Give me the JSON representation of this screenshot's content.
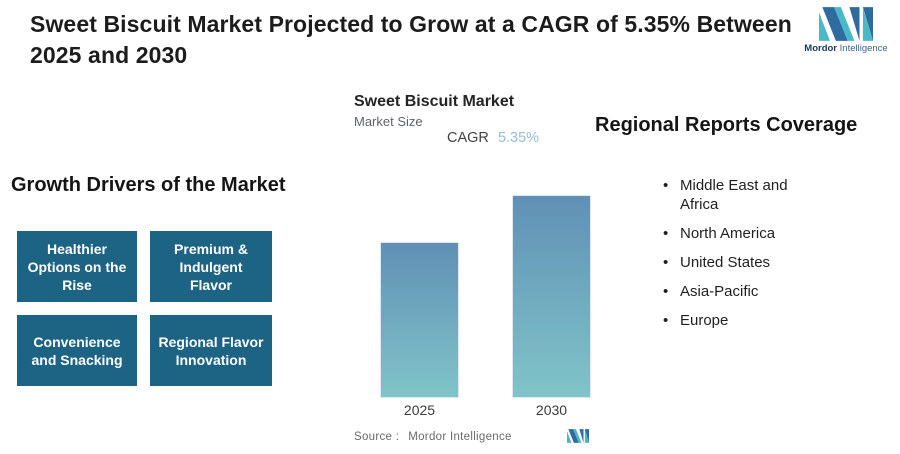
{
  "header": {
    "title": "Sweet Biscuit Market Projected to Grow at a CAGR of 5.35% Between 2025 and 2030"
  },
  "brand": {
    "icon": "mordor-intelligence-m-logo",
    "name_primary": "Mordor",
    "name_secondary": "Intelligence"
  },
  "growth_drivers": {
    "heading": "Growth Drivers of the Market",
    "boxes": [
      {
        "label": "Healthier Options on the Rise"
      },
      {
        "label": "Premium & Indulgent Flavor"
      },
      {
        "label": "Convenience and Snacking"
      },
      {
        "label": "Regional Flavor Innovation"
      }
    ]
  },
  "chart": {
    "title": "Sweet Biscuit Market",
    "subtitle": "Market Size",
    "cagr_label": "CAGR",
    "cagr_value": "5.35%",
    "source_label": "Source :",
    "source_value": "Mordor Intelligence"
  },
  "chart_data": {
    "type": "bar",
    "title": "Sweet Biscuit Market",
    "subtitle": "Market Size",
    "annotation": "CAGR 5.35%",
    "categories": [
      "2025",
      "2030"
    ],
    "values": [
      100,
      130
    ],
    "value_note": "No numeric axis shown; 2025 indexed to 100, 2030 ~130 implied by 5.35% CAGR over 2025-2030 and bar height ratio",
    "xlabel": "",
    "ylabel": "Market Size",
    "ylim": [
      0,
      140
    ],
    "grid": false,
    "legend": false,
    "bar_color_top": "#6090b5",
    "bar_color_bottom": "#80c4c8"
  },
  "regional_coverage": {
    "heading": "Regional Reports Coverage",
    "items": [
      "Middle East and Africa",
      "North America",
      "United States",
      "Asia-Pacific",
      "Europe"
    ]
  },
  "colors": {
    "driver_box": "#1d6383",
    "cagr_accent": "#95bddd",
    "logo_teal": "#49b9c7",
    "logo_blue": "#2e6b9e"
  }
}
